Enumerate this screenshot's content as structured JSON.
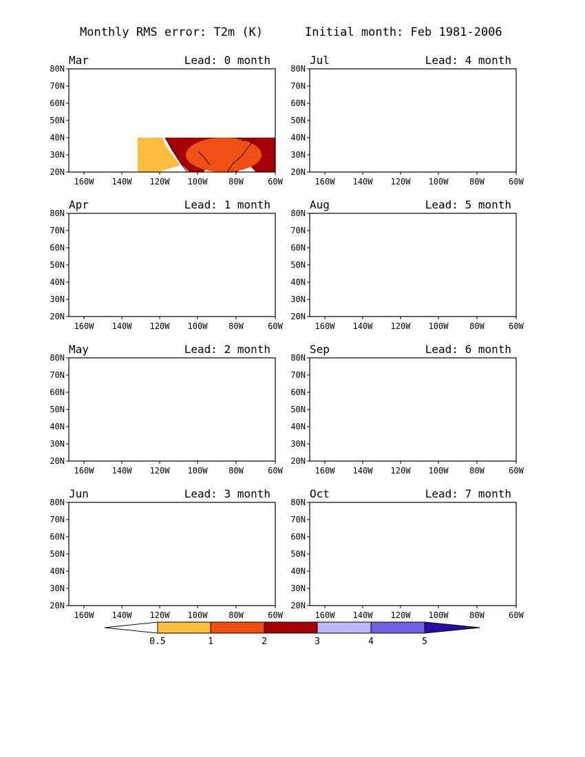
{
  "header": {
    "title_left": "Monthly RMS error: T2m (K)",
    "title_right": "Initial month: Feb 1981-2006"
  },
  "axes": {
    "lat_labels": [
      "80N",
      "70N",
      "60N",
      "50N",
      "40N",
      "30N",
      "20N"
    ],
    "lon_labels": [
      "160W",
      "140W",
      "120W",
      "100W",
      "80W",
      "60W"
    ]
  },
  "panels": [
    {
      "month": "Mar",
      "lead": "Lead: 0 month"
    },
    {
      "month": "Jul",
      "lead": "Lead: 4 month"
    },
    {
      "month": "Apr",
      "lead": "Lead: 1 month"
    },
    {
      "month": "Aug",
      "lead": "Lead: 5 month"
    },
    {
      "month": "May",
      "lead": "Lead: 2 month"
    },
    {
      "month": "Sep",
      "lead": "Lead: 6 month"
    },
    {
      "month": "Jun",
      "lead": "Lead: 3 month"
    },
    {
      "month": "Oct",
      "lead": "Lead: 7 month"
    }
  ],
  "colorbar": {
    "labels": [
      "0.5",
      "1",
      "2",
      "3",
      "4",
      "5"
    ],
    "colors": [
      "#ffffff",
      "#fcbe3c",
      "#f04f13",
      "#d71c0c",
      "#a50002",
      "#beb6fb",
      "#6f61e3",
      "#2a0d9f"
    ]
  }
}
